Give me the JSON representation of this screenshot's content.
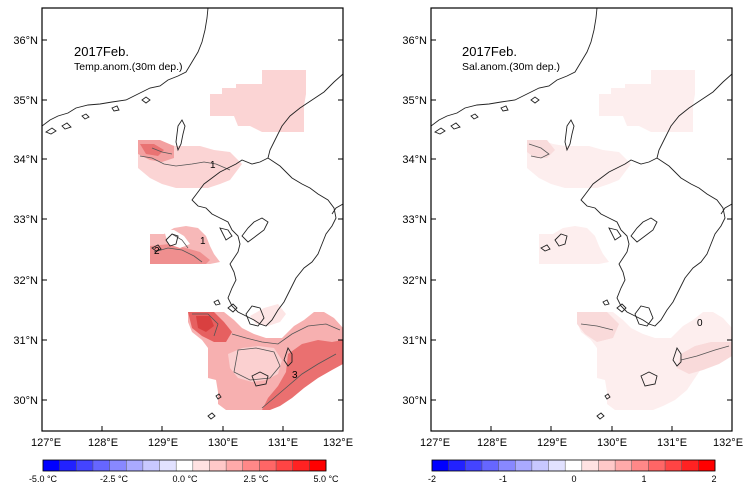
{
  "panels": [
    {
      "id": "temperature",
      "title": "2017Feb.",
      "subtitle": "Temp.anom.(30m dep.)",
      "lat_ticks": [
        "36°N",
        "35°N",
        "34°N",
        "33°N",
        "32°N",
        "31°N",
        "30°N"
      ],
      "lon_ticks": [
        "127°E",
        "128°E",
        "129°E",
        "130°E",
        "131°E",
        "132°E"
      ],
      "contour_labels": [
        "1",
        "1",
        "2",
        "3"
      ],
      "colorbar_labels": [
        "-5.0 °C",
        "-2.5 °C",
        "0.0 °C",
        "2.5 °C",
        "5.0 °C"
      ]
    },
    {
      "id": "salinity",
      "title": "2017Feb.",
      "subtitle": "Sal.anom.(30m dep.)",
      "lat_ticks": [
        "36°N",
        "35°N",
        "34°N",
        "33°N",
        "32°N",
        "31°N",
        "30°N"
      ],
      "lon_ticks": [
        "127°E",
        "128°E",
        "129°E",
        "130°E",
        "131°E",
        "132°E"
      ],
      "contour_labels": [
        "0"
      ],
      "colorbar_labels": [
        "-2",
        "-1",
        "0",
        "1",
        "2"
      ]
    }
  ],
  "colors": {
    "colorbar": [
      "#0000ff",
      "#2222ff",
      "#4444ff",
      "#6666ff",
      "#8888ff",
      "#aaaaff",
      "#c8c8ff",
      "#e2e2ff",
      "#ffffff",
      "#ffe2e2",
      "#ffc8c8",
      "#ffaaaa",
      "#ff8888",
      "#ff6666",
      "#ff4444",
      "#ff2222",
      "#ff0000"
    ],
    "temp_light": "#fbd4d4",
    "temp_mid": "#f6a9a9",
    "temp_strong": "#ee7a7a",
    "temp_dark": "#e05050",
    "sal_light": "#fdeeee",
    "sal_mid": "#f9dcdc"
  }
}
